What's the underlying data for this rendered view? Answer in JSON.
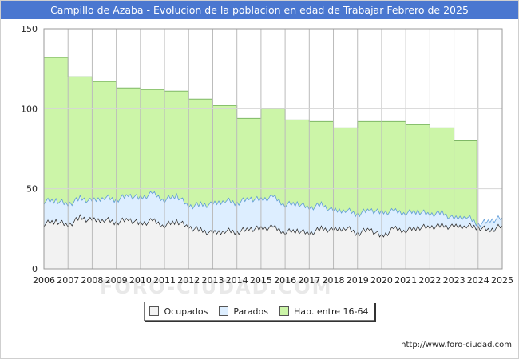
{
  "header": {
    "title": "Campillo de Azaba - Evolucion de la poblacion en edad de Trabajar Febrero de 2025"
  },
  "footer": {
    "url": "http://www.foro-ciudad.com"
  },
  "watermark": {
    "text": "FORO-CIUDAD.COM"
  },
  "colors": {
    "hab": "#ccf5a8",
    "hab_line": "#7fb866",
    "parados": "#ddeeff",
    "parados_line": "#5e9bd6",
    "ocupados": "#f2f2f2",
    "ocupados_line": "#222222",
    "grid": "#bbbbbb"
  },
  "chart_data": {
    "type": "area",
    "title": "Campillo de Azaba - Evolucion de la poblacion en edad de Trabajar Febrero de 2025",
    "xlabel": "",
    "ylabel": "",
    "xlim": [
      2006,
      2025
    ],
    "ylim": [
      0,
      150
    ],
    "y_ticks": [
      0,
      50,
      100,
      150
    ],
    "x_ticks": [
      "2006",
      "2007",
      "2008",
      "2009",
      "2010",
      "2011",
      "2012",
      "2013",
      "2014",
      "2015",
      "2016",
      "2017",
      "2018",
      "2019",
      "2020",
      "2021",
      "2022",
      "2023",
      "2024",
      "2025"
    ],
    "grid": true,
    "legend_position": "bottom",
    "series": [
      {
        "name": "Hab. entre 16-64",
        "kind": "step",
        "years": [
          2006,
          2007,
          2008,
          2009,
          2010,
          2011,
          2012,
          2013,
          2014,
          2015,
          2016,
          2017,
          2018,
          2019,
          2020,
          2021,
          2022,
          2023
        ],
        "values": [
          132,
          120,
          117,
          113,
          112,
          111,
          106,
          102,
          94,
          100,
          93,
          92,
          88,
          92,
          92,
          90,
          88,
          80
        ]
      },
      {
        "name": "Parados",
        "kind": "monthly_total",
        "x": [
          2006,
          2006.5,
          2007,
          2007.5,
          2008,
          2008.5,
          2009,
          2009.5,
          2010,
          2010.5,
          2011,
          2011.5,
          2012,
          2012.5,
          2013,
          2013.5,
          2014,
          2014.5,
          2015,
          2015.5,
          2016,
          2016.5,
          2017,
          2017.5,
          2018,
          2018.5,
          2019,
          2019.5,
          2020,
          2020.5,
          2021,
          2021.5,
          2022,
          2022.5,
          2023,
          2023.5,
          2024,
          2024.5,
          2025
        ],
        "values": [
          42,
          43,
          40,
          44,
          42,
          45,
          43,
          46,
          44,
          47,
          43,
          46,
          39,
          40,
          40,
          43,
          41,
          44,
          43,
          45,
          40,
          41,
          38,
          40,
          36,
          37,
          34,
          37,
          35,
          36,
          35,
          36,
          34,
          35,
          31,
          33,
          28,
          30,
          32
        ]
      },
      {
        "name": "Ocupados",
        "x": [
          2006,
          2006.5,
          2007,
          2007.5,
          2008,
          2008.5,
          2009,
          2009.5,
          2010,
          2010.5,
          2011,
          2011.5,
          2012,
          2012.5,
          2013,
          2013.5,
          2014,
          2014.5,
          2015,
          2015.5,
          2016,
          2016.5,
          2017,
          2017.5,
          2018,
          2018.5,
          2019,
          2019.5,
          2020,
          2020.5,
          2021,
          2021.5,
          2022,
          2022.5,
          2023,
          2023.5,
          2024,
          2024.5,
          2025
        ],
        "values": [
          28,
          30,
          27,
          32,
          30,
          31,
          29,
          31,
          28,
          30,
          27,
          30,
          26,
          24,
          22,
          24,
          23,
          25,
          25,
          26,
          23,
          24,
          22,
          25,
          24,
          26,
          22,
          25,
          20,
          25,
          24,
          26,
          26,
          27,
          26,
          27,
          26,
          24,
          27
        ]
      }
    ]
  },
  "legend": {
    "items": [
      {
        "label": "Ocupados",
        "color": "#f2f2f2"
      },
      {
        "label": "Parados",
        "color": "#ddeeff"
      },
      {
        "label": "Hab. entre 16-64",
        "color": "#ccf5a8"
      }
    ]
  }
}
